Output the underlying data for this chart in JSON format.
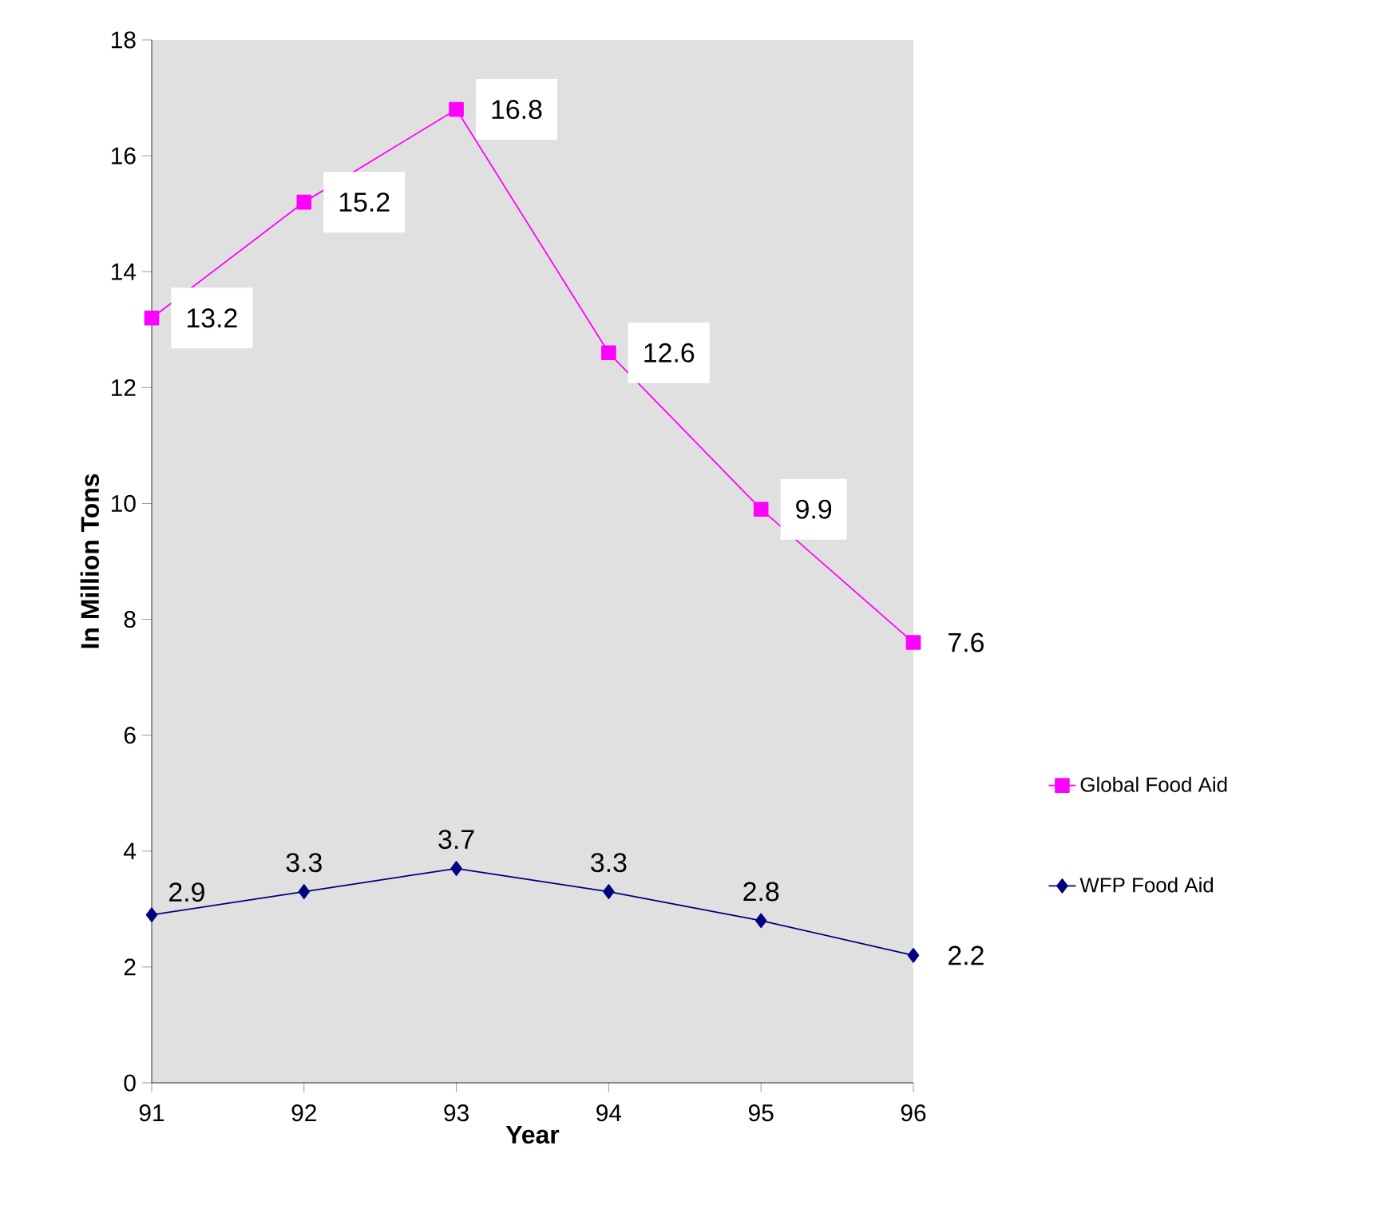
{
  "chart_data": {
    "type": "line",
    "xlabel": "Year",
    "ylabel": "In Million Tons",
    "x": [
      91,
      92,
      93,
      94,
      95,
      96
    ],
    "series": [
      {
        "name": "Global Food Aid",
        "color": "#ff00ff",
        "marker": "square",
        "values": [
          13.2,
          15.2,
          16.8,
          12.6,
          9.9,
          7.6
        ]
      },
      {
        "name": "WFP Food Aid",
        "color": "#000080",
        "marker": "diamond",
        "values": [
          2.9,
          3.3,
          3.7,
          3.3,
          2.8,
          2.2
        ]
      }
    ],
    "xlim": [
      91,
      96
    ],
    "xticks": [
      91,
      92,
      93,
      94,
      95,
      96
    ],
    "ylim": [
      0,
      18
    ],
    "yticks": [
      0,
      2,
      4,
      6,
      8,
      10,
      12,
      14,
      16,
      18
    ],
    "data_labels": true,
    "legend": "right",
    "grid": false,
    "line_style": "solid"
  }
}
